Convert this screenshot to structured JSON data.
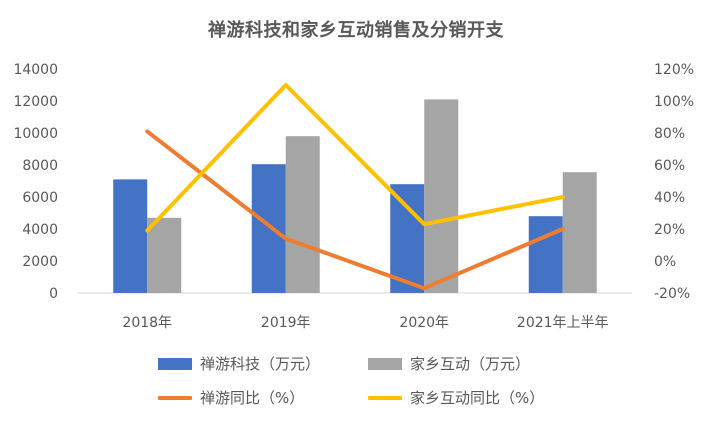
{
  "chart_data": {
    "type": "bar",
    "title": "禅游科技和家乡互动销售及分销开支",
    "categories": [
      "2018年",
      "2019年",
      "2020年",
      "2021年上半年"
    ],
    "left_axis": {
      "ylim": [
        0,
        14000
      ],
      "ticks": [
        "0",
        "2000",
        "4000",
        "6000",
        "8000",
        "10000",
        "12000",
        "14000"
      ]
    },
    "right_axis": {
      "ylim": [
        -20,
        120
      ],
      "ticks": [
        "-20%",
        "0%",
        "20%",
        "40%",
        "60%",
        "80%",
        "100%",
        "120%"
      ]
    },
    "series": [
      {
        "name": "禅游科技（万元）",
        "kind": "bar",
        "axis": "left",
        "color": "#4472C4",
        "values": [
          7100,
          8050,
          6800,
          4800
        ]
      },
      {
        "name": "家乡互动（万元）",
        "kind": "bar",
        "axis": "left",
        "color": "#A5A5A5",
        "values": [
          4700,
          9800,
          12100,
          7550
        ]
      },
      {
        "name": "禅游同比（%）",
        "kind": "line",
        "axis": "right",
        "color": "#ED7D31",
        "values": [
          81,
          14,
          -17,
          20
        ]
      },
      {
        "name": "家乡互动同比（%）",
        "kind": "line",
        "axis": "right",
        "color": "#FFC000",
        "values": [
          19,
          110,
          23,
          40
        ]
      }
    ],
    "grid": false,
    "legend_placement": "bottom"
  }
}
